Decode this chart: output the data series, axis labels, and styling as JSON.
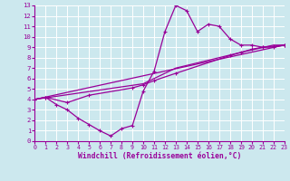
{
  "xlabel": "Windchill (Refroidissement éolien,°C)",
  "bg_color": "#cce8ee",
  "line_color": "#990099",
  "grid_color": "#ffffff",
  "xlim": [
    0,
    23
  ],
  "ylim": [
    0,
    13
  ],
  "xticks": [
    0,
    1,
    2,
    3,
    4,
    5,
    6,
    7,
    8,
    9,
    10,
    11,
    12,
    13,
    14,
    15,
    16,
    17,
    18,
    19,
    20,
    21,
    22,
    23
  ],
  "yticks": [
    0,
    1,
    2,
    3,
    4,
    5,
    6,
    7,
    8,
    9,
    10,
    11,
    12,
    13
  ],
  "line1_x": [
    0,
    1,
    2,
    3,
    4,
    5,
    6,
    7,
    8,
    9,
    10,
    11,
    12,
    13,
    14,
    15,
    16,
    17,
    18,
    19,
    20,
    21,
    22,
    23
  ],
  "line1_y": [
    4.0,
    4.2,
    3.5,
    3.0,
    2.2,
    1.6,
    1.0,
    0.5,
    1.2,
    1.5,
    4.8,
    6.7,
    10.5,
    13.0,
    12.5,
    10.5,
    11.2,
    11.0,
    9.8,
    9.2,
    9.2,
    9.0,
    9.0,
    9.2
  ],
  "line2_x": [
    0,
    1,
    3,
    5,
    9,
    10,
    11,
    13,
    18,
    19,
    20,
    21,
    22,
    23
  ],
  "line2_y": [
    4.0,
    4.2,
    3.7,
    4.4,
    5.1,
    5.4,
    5.8,
    6.5,
    8.2,
    8.5,
    8.8,
    9.0,
    9.1,
    9.2
  ],
  "line3_x": [
    0,
    10,
    13,
    19,
    22,
    23
  ],
  "line3_y": [
    4.0,
    5.5,
    7.0,
    8.5,
    9.2,
    9.2
  ],
  "line4_x": [
    0,
    23
  ],
  "line4_y": [
    4.0,
    9.2
  ]
}
